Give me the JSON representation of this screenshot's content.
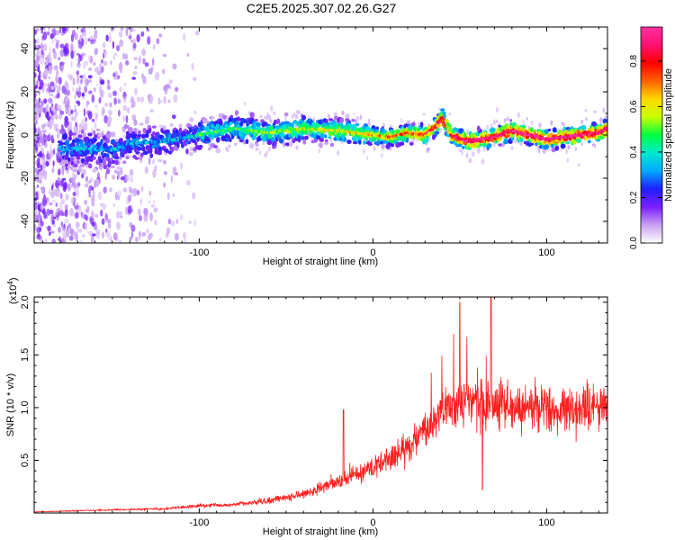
{
  "title": "C2E5.2025.307.02.26.G27",
  "chart_data": [
    {
      "type": "heatmap",
      "name": "spectrogram",
      "xlabel": "Height of straight line (km)",
      "ylabel": "Frequency (Hz)",
      "xlim": [
        -195,
        135
      ],
      "ylim": [
        -50,
        50
      ],
      "xticks": [
        -100,
        0,
        100
      ],
      "yticks": [
        -40,
        -20,
        0,
        20,
        40
      ],
      "colorbar": {
        "label": "Normalized spectral amplitude",
        "range": [
          0,
          0.95
        ],
        "ticks": [
          0.0,
          0.2,
          0.4,
          0.6,
          0.8
        ],
        "tick_labels": [
          "0.0",
          "0.2",
          "0.4",
          "0.6",
          "0.8"
        ],
        "colors": [
          "#ffffff",
          "#c8a0f0",
          "#7a1fff",
          "#1f1fff",
          "#00a8ff",
          "#00e8d0",
          "#00ff40",
          "#c8ff00",
          "#ffd800",
          "#ff6000",
          "#ff0000",
          "#ff1070",
          "#ff30a0"
        ]
      },
      "ridge": {
        "x": [
          -175,
          -150,
          -140,
          -120,
          -100,
          -80,
          -60,
          -40,
          -20,
          0,
          10,
          20,
          30,
          36,
          40,
          45,
          55,
          70,
          80,
          90,
          100,
          110,
          120,
          130,
          135
        ],
        "freq": [
          -6,
          -7,
          -4,
          -3,
          0,
          3,
          1,
          3,
          2,
          0,
          -1,
          1,
          0,
          4,
          8,
          0,
          -3,
          -1,
          2,
          0,
          -2,
          -1,
          0,
          1,
          3
        ]
      }
    },
    {
      "type": "line",
      "name": "snr",
      "xlabel": "Height of straight line (km)",
      "ylabel": "SNR (10 * v/v)",
      "yscale_label": "(x10",
      "yscale_exp": "4",
      "yscale_close": ")",
      "xlim": [
        -195,
        135
      ],
      "ylim": [
        0,
        2.05
      ],
      "xticks": [
        -100,
        0,
        100
      ],
      "yticks": [
        0.5,
        1.0,
        1.5,
        2.0
      ],
      "ytick_labels": [
        "0.5",
        "1.0",
        "1.5",
        "2.0"
      ],
      "color": "#ff1f1f",
      "trend_x": [
        -195,
        -150,
        -120,
        -100,
        -80,
        -60,
        -40,
        -20,
        0,
        20,
        40,
        55,
        70,
        90,
        110,
        135
      ],
      "trend_y": [
        0.01,
        0.03,
        0.04,
        0.07,
        0.08,
        0.12,
        0.18,
        0.3,
        0.42,
        0.62,
        0.95,
        1.05,
        1.02,
        1.0,
        0.97,
        1.0
      ]
    }
  ]
}
